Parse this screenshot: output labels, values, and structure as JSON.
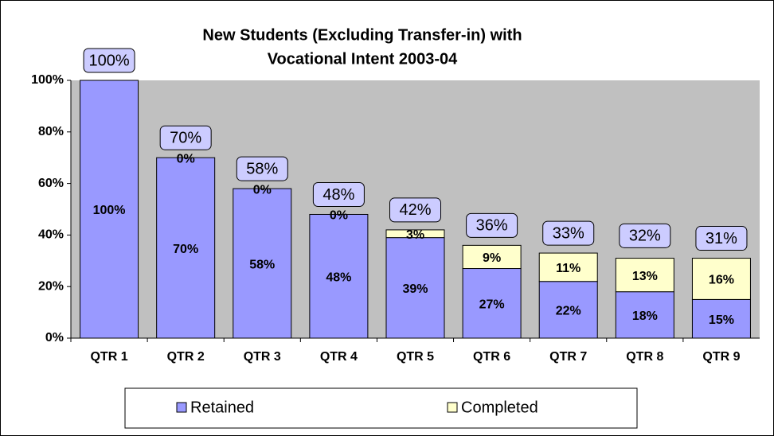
{
  "chart_data": {
    "type": "stacked_bar",
    "title": [
      "New Students (Excluding Transfer-in) with",
      "Vocational Intent 2003-04"
    ],
    "categories": [
      "QTR 1",
      "QTR 2",
      "QTR 3",
      "QTR 4",
      "QTR 5",
      "QTR 6",
      "QTR 7",
      "QTR 8",
      "QTR 9"
    ],
    "series": [
      {
        "name": "Retained",
        "color": "#9999ff",
        "values": [
          100,
          70,
          58,
          48,
          39,
          27,
          22,
          18,
          15
        ],
        "value_labels": [
          "100%",
          "70%",
          "58%",
          "48%",
          "39%",
          "27%",
          "22%",
          "18%",
          "15%"
        ]
      },
      {
        "name": "Completed",
        "color": "#ffffcc",
        "values": [
          null,
          0,
          0,
          0,
          3,
          9,
          11,
          13,
          16
        ],
        "value_labels": [
          null,
          "0%",
          "0%",
          "0%",
          "3%",
          "9%",
          "11%",
          "13%",
          "16%"
        ]
      }
    ],
    "totals": [
      100,
      70,
      58,
      48,
      42,
      36,
      33,
      32,
      31
    ],
    "total_labels": [
      "100%",
      "70%",
      "58%",
      "48%",
      "42%",
      "36%",
      "33%",
      "32%",
      "31%"
    ],
    "ylim": [
      0,
      100
    ],
    "yticks": [
      {
        "value": 0,
        "label": "0%"
      },
      {
        "value": 20,
        "label": "20%"
      },
      {
        "value": 40,
        "label": "40%"
      },
      {
        "value": 60,
        "label": "60%"
      },
      {
        "value": 80,
        "label": "80%"
      },
      {
        "value": 100,
        "label": "100%"
      }
    ],
    "plot_background": "#c0c0c0",
    "legend": "bottom"
  }
}
